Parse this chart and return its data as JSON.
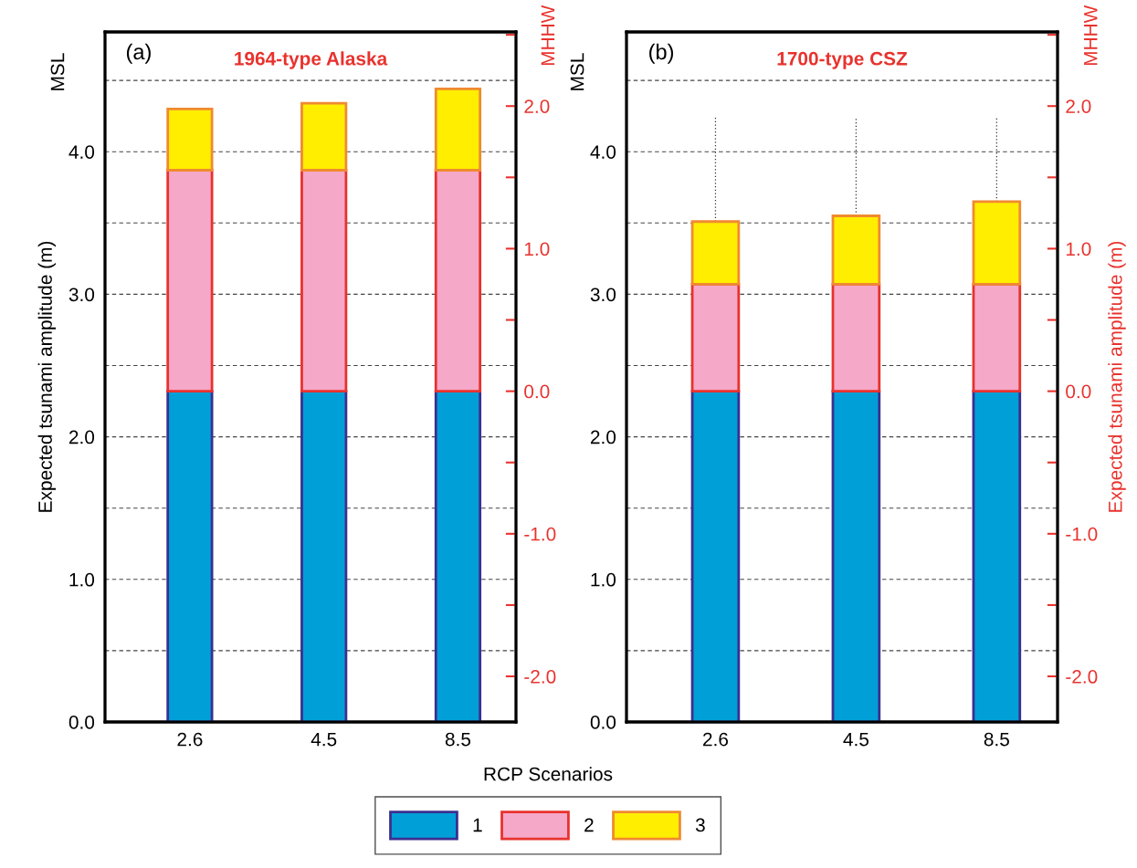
{
  "chart_data": [
    {
      "type": "bar",
      "title": "1964-type Alaska",
      "ylabel": "Expected tsunami amplitude (m)",
      "y2label": "MHHW",
      "xlabel": "RCP Scenarios",
      "annotations": [
        "(a)",
        "MSL"
      ],
      "categories": [
        "2.6",
        "4.5",
        "8.5"
      ],
      "stacked": true,
      "series": [
        {
          "name": "1",
          "color": "#009fd8",
          "values": [
            2.32,
            2.32,
            2.32
          ]
        },
        {
          "name": "2",
          "color": "#f5a8c8",
          "values": [
            1.55,
            1.55,
            1.55
          ]
        },
        {
          "name": "3",
          "color": "#ffee00",
          "values": [
            0.43,
            0.47,
            0.57
          ]
        }
      ],
      "ylim": [
        0,
        4.84
      ],
      "yticks": [
        {
          "value": 0,
          "label": "0.0"
        },
        {
          "value": 0.5,
          "label": null
        },
        {
          "value": 1,
          "label": "1.0"
        },
        {
          "value": 1.5,
          "label": null
        },
        {
          "value": 2,
          "label": "2.0"
        },
        {
          "value": 2.5,
          "label": null
        },
        {
          "value": 3,
          "label": "3.0"
        },
        {
          "value": 3.5,
          "label": null
        },
        {
          "value": 4,
          "label": "4.0"
        },
        {
          "value": 4.5,
          "label": null
        }
      ],
      "y2lim": [
        -2.32,
        2.52
      ],
      "y2ticks": [
        {
          "value": -2,
          "label": "-2.0"
        },
        {
          "value": -1.5,
          "label": null
        },
        {
          "value": -1,
          "label": "-1.0"
        },
        {
          "value": -0.5,
          "label": null
        },
        {
          "value": 0,
          "label": "0.0"
        },
        {
          "value": 0.5,
          "label": null
        },
        {
          "value": 1,
          "label": "1.0"
        },
        {
          "value": 1.5,
          "label": null
        },
        {
          "value": 2,
          "label": "2.0"
        },
        {
          "value": 2.5,
          "label": null
        }
      ],
      "grid": "y",
      "legend": "bottom"
    },
    {
      "type": "bar",
      "title": "1700-type CSZ",
      "ylabel": "MSL",
      "y2label": "Expected tsunami amplitude (m)",
      "annotations": [
        "(b)",
        "MHHW"
      ],
      "categories": [
        "2.6",
        "4.5",
        "8.5"
      ],
      "stacked": true,
      "series": [
        {
          "name": "1",
          "color": "#009fd8",
          "values": [
            2.32,
            2.32,
            2.32
          ]
        },
        {
          "name": "2",
          "color": "#f5a8c8",
          "values": [
            0.75,
            0.75,
            0.75
          ]
        },
        {
          "name": "3",
          "color": "#ffee00",
          "values": [
            0.44,
            0.48,
            0.58
          ],
          "errors": [
            [
              3.51,
              4.24
            ],
            [
              3.55,
              4.24
            ],
            [
              3.65,
              4.24
            ]
          ]
        }
      ],
      "ylim": [
        0,
        4.84
      ],
      "yticks": [
        {
          "value": 0,
          "label": "0.0"
        },
        {
          "value": 0.5,
          "label": null
        },
        {
          "value": 1,
          "label": "1.0"
        },
        {
          "value": 1.5,
          "label": null
        },
        {
          "value": 2,
          "label": "2.0"
        },
        {
          "value": 2.5,
          "label": null
        },
        {
          "value": 3,
          "label": "3.0"
        },
        {
          "value": 3.5,
          "label": null
        },
        {
          "value": 4,
          "label": "4.0"
        },
        {
          "value": 4.5,
          "label": null
        }
      ],
      "y2lim": [
        -2.32,
        2.52
      ],
      "y2ticks": [
        {
          "value": -2,
          "label": "-2.0"
        },
        {
          "value": -1.5,
          "label": null
        },
        {
          "value": -1,
          "label": "-1.0"
        },
        {
          "value": -0.5,
          "label": null
        },
        {
          "value": 0,
          "label": "0.0"
        },
        {
          "value": 0.5,
          "label": null
        },
        {
          "value": 1,
          "label": "1.0"
        },
        {
          "value": 1.5,
          "label": null
        },
        {
          "value": 2,
          "label": "2.0"
        },
        {
          "value": 2.5,
          "label": null
        }
      ],
      "grid": "y"
    }
  ]
}
